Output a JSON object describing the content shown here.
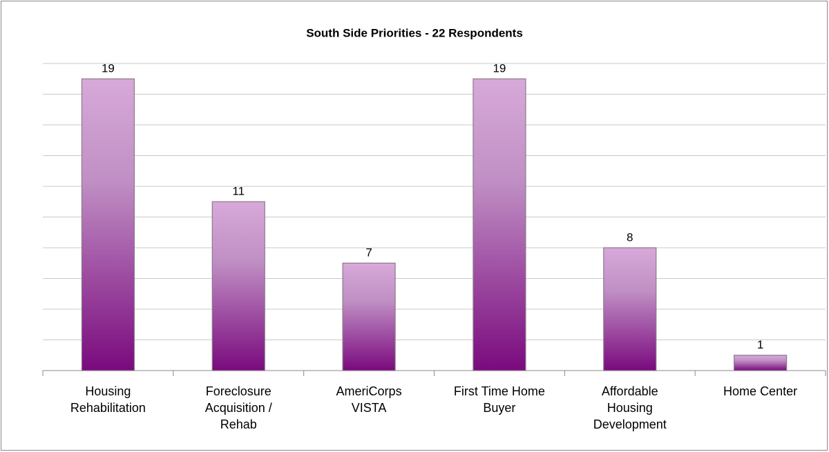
{
  "chart_data": {
    "type": "bar",
    "title": "South Side Priorities - 22 Respondents",
    "categories": [
      "Housing\nRehabilitation",
      "Foreclosure\nAcquisition /\nRehab",
      "AmeriCorps\nVISTA",
      "First Time Home\nBuyer",
      "Affordable\nHousing\nDevelopment",
      "Home Center"
    ],
    "values": [
      19,
      11,
      7,
      19,
      8,
      1
    ],
    "color": "#a04aa5",
    "ylim": [
      0,
      20
    ],
    "yticks": [
      0,
      2,
      4,
      6,
      8,
      10,
      12,
      14,
      16,
      18,
      20
    ],
    "grid": true
  }
}
